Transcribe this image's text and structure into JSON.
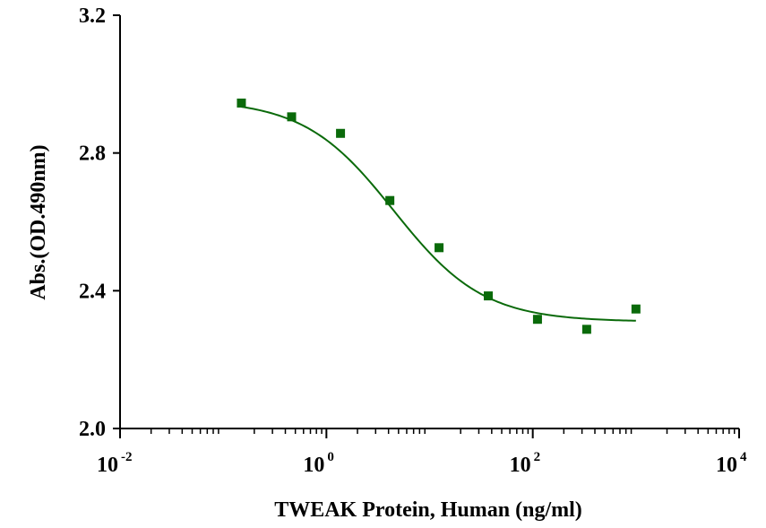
{
  "chart_data": {
    "type": "scatter",
    "title": "",
    "xlabel": "TWEAK Protein, Human (ng/ml)",
    "ylabel": "Abs.(OD.490nm)",
    "x_scale": "log10",
    "xlim": [
      0.01,
      10000
    ],
    "ylim": [
      2.0,
      3.2
    ],
    "x_ticks": [
      {
        "value": 0.01,
        "base": "10",
        "exp": "-2"
      },
      {
        "value": 1,
        "base": "10",
        "exp": "0"
      },
      {
        "value": 100,
        "base": "10",
        "exp": "2"
      },
      {
        "value": 10000,
        "base": "10",
        "exp": "4"
      }
    ],
    "y_ticks": [
      {
        "value": 2.0,
        "label": "2.0"
      },
      {
        "value": 2.4,
        "label": "2.4"
      },
      {
        "value": 2.8,
        "label": "2.8"
      },
      {
        "value": 3.2,
        "label": "3.2"
      }
    ],
    "grid": false,
    "legend": "none",
    "color": "#0a6a0a",
    "series": [
      {
        "x": [
          0.15,
          0.46,
          1.37,
          4.12,
          12.35,
          37.04,
          111.1,
          333.3,
          1000
        ],
        "y": [
          2.945,
          2.905,
          2.857,
          2.662,
          2.525,
          2.385,
          2.317,
          2.288,
          2.347
        ]
      }
    ],
    "fit": {
      "model": "4PL",
      "top": 2.955,
      "bottom": 2.31,
      "ec50": 4.5,
      "hill": 1.0,
      "x_range": [
        0.15,
        1000
      ]
    }
  }
}
